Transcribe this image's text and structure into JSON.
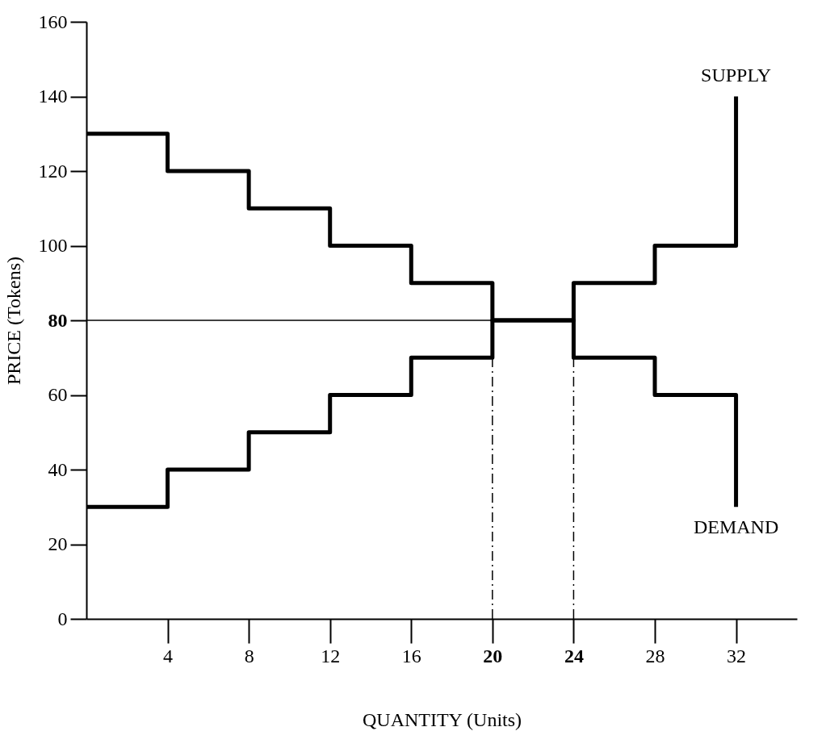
{
  "chart_data": {
    "type": "step",
    "xlabel": "QUANTITY (Units)",
    "ylabel": "PRICE (Tokens)",
    "x": [
      0,
      4,
      8,
      12,
      16,
      20,
      24,
      28,
      32
    ],
    "series": [
      {
        "name": "DEMAND",
        "color": "#000000",
        "values": [
          130,
          120,
          110,
          100,
          90,
          80,
          70,
          60,
          30
        ]
      },
      {
        "name": "SUPPLY",
        "color": "#000000",
        "values": [
          30,
          40,
          50,
          60,
          70,
          80,
          90,
          100,
          140
        ]
      }
    ],
    "xlim": [
      0,
      35
    ],
    "xticks": [
      4,
      8,
      12,
      16,
      20,
      24,
      28,
      32
    ],
    "ylim": [
      0,
      160
    ],
    "yticks": [
      0,
      20,
      40,
      60,
      80,
      100,
      120,
      140,
      160
    ],
    "ref_lines": [
      {
        "axis": "y",
        "value": 80,
        "color": "#000000",
        "line_style": "solid"
      },
      {
        "axis": "x",
        "value": 20,
        "color": "#000000",
        "line_style": "dashed"
      },
      {
        "axis": "x",
        "value": 24,
        "color": "#000000",
        "line_style": "dashed"
      }
    ],
    "grid": false,
    "legend": false,
    "marker": "none",
    "line_style": "solid"
  }
}
